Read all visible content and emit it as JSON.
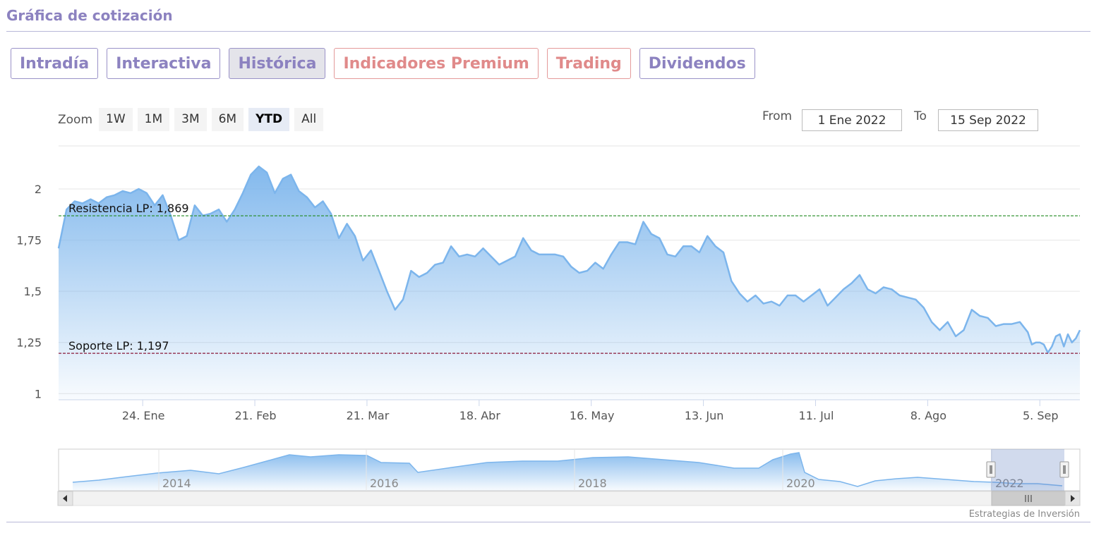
{
  "header": {
    "title": "Gráfica de cotización"
  },
  "tabs": [
    {
      "label": "Intradía",
      "state": "normal"
    },
    {
      "label": "Interactiva",
      "state": "normal"
    },
    {
      "label": "Histórica",
      "state": "active"
    },
    {
      "label": "Indicadores Premium",
      "state": "premium"
    },
    {
      "label": "Trading",
      "state": "premium"
    },
    {
      "label": "Dividendos",
      "state": "normal"
    }
  ],
  "zoom": {
    "label": "Zoom",
    "buttons": [
      "1W",
      "1M",
      "3M",
      "6M",
      "YTD",
      "All"
    ],
    "selected": "YTD"
  },
  "range": {
    "from_label": "From",
    "from_value": "1 Ene 2022",
    "to_label": "To",
    "to_value": "15 Sep 2022"
  },
  "credits": "Estrategias de Inversión",
  "chart_data": {
    "type": "area",
    "x_start": "2022-01-03",
    "x_end": "2022-09-15",
    "ylim": [
      0.97,
      2.2
    ],
    "y_ticks": [
      "1",
      "1,25",
      "1,5",
      "1,75",
      "2"
    ],
    "x_ticks": [
      {
        "date": "2022-01-24",
        "label": "24. Ene"
      },
      {
        "date": "2022-02-21",
        "label": "21. Feb"
      },
      {
        "date": "2022-03-21",
        "label": "21. Mar"
      },
      {
        "date": "2022-04-18",
        "label": "18. Abr"
      },
      {
        "date": "2022-05-16",
        "label": "16. May"
      },
      {
        "date": "2022-06-13",
        "label": "13. Jun"
      },
      {
        "date": "2022-07-11",
        "label": "11. Jul"
      },
      {
        "date": "2022-08-08",
        "label": "8. Ago"
      },
      {
        "date": "2022-09-05",
        "label": "5. Sep"
      }
    ],
    "series": [
      {
        "color": "#7cb5ec",
        "points": [
          [
            "2022-01-03",
            1.71
          ],
          [
            "2022-01-05",
            1.9
          ],
          [
            "2022-01-07",
            1.94
          ],
          [
            "2022-01-09",
            1.93
          ],
          [
            "2022-01-11",
            1.95
          ],
          [
            "2022-01-13",
            1.93
          ],
          [
            "2022-01-15",
            1.96
          ],
          [
            "2022-01-17",
            1.97
          ],
          [
            "2022-01-19",
            1.99
          ],
          [
            "2022-01-21",
            1.98
          ],
          [
            "2022-01-23",
            2.0
          ],
          [
            "2022-01-25",
            1.98
          ],
          [
            "2022-01-27",
            1.92
          ],
          [
            "2022-01-29",
            1.97
          ],
          [
            "2022-01-31",
            1.87
          ],
          [
            "2022-02-02",
            1.75
          ],
          [
            "2022-02-04",
            1.77
          ],
          [
            "2022-02-06",
            1.92
          ],
          [
            "2022-02-08",
            1.87
          ],
          [
            "2022-02-10",
            1.88
          ],
          [
            "2022-02-12",
            1.9
          ],
          [
            "2022-02-14",
            1.84
          ],
          [
            "2022-02-16",
            1.9
          ],
          [
            "2022-02-18",
            1.98
          ],
          [
            "2022-02-20",
            2.07
          ],
          [
            "2022-02-22",
            2.11
          ],
          [
            "2022-02-24",
            2.08
          ],
          [
            "2022-02-26",
            1.98
          ],
          [
            "2022-02-28",
            2.05
          ],
          [
            "2022-03-02",
            2.07
          ],
          [
            "2022-03-04",
            1.99
          ],
          [
            "2022-03-06",
            1.96
          ],
          [
            "2022-03-08",
            1.91
          ],
          [
            "2022-03-10",
            1.94
          ],
          [
            "2022-03-12",
            1.88
          ],
          [
            "2022-03-14",
            1.76
          ],
          [
            "2022-03-16",
            1.83
          ],
          [
            "2022-03-18",
            1.77
          ],
          [
            "2022-03-20",
            1.65
          ],
          [
            "2022-03-22",
            1.7
          ],
          [
            "2022-03-24",
            1.6
          ],
          [
            "2022-03-26",
            1.5
          ],
          [
            "2022-03-28",
            1.41
          ],
          [
            "2022-03-30",
            1.46
          ],
          [
            "2022-04-01",
            1.6
          ],
          [
            "2022-04-03",
            1.57
          ],
          [
            "2022-04-05",
            1.59
          ],
          [
            "2022-04-07",
            1.63
          ],
          [
            "2022-04-09",
            1.64
          ],
          [
            "2022-04-11",
            1.72
          ],
          [
            "2022-04-13",
            1.67
          ],
          [
            "2022-04-15",
            1.68
          ],
          [
            "2022-04-17",
            1.67
          ],
          [
            "2022-04-19",
            1.71
          ],
          [
            "2022-04-21",
            1.67
          ],
          [
            "2022-04-23",
            1.63
          ],
          [
            "2022-04-25",
            1.65
          ],
          [
            "2022-04-27",
            1.67
          ],
          [
            "2022-04-29",
            1.76
          ],
          [
            "2022-05-01",
            1.7
          ],
          [
            "2022-05-03",
            1.68
          ],
          [
            "2022-05-05",
            1.68
          ],
          [
            "2022-05-07",
            1.68
          ],
          [
            "2022-05-09",
            1.67
          ],
          [
            "2022-05-11",
            1.62
          ],
          [
            "2022-05-13",
            1.59
          ],
          [
            "2022-05-15",
            1.6
          ],
          [
            "2022-05-17",
            1.64
          ],
          [
            "2022-05-19",
            1.61
          ],
          [
            "2022-05-21",
            1.68
          ],
          [
            "2022-05-23",
            1.74
          ],
          [
            "2022-05-25",
            1.74
          ],
          [
            "2022-05-27",
            1.73
          ],
          [
            "2022-05-29",
            1.84
          ],
          [
            "2022-05-31",
            1.78
          ],
          [
            "2022-06-02",
            1.76
          ],
          [
            "2022-06-04",
            1.68
          ],
          [
            "2022-06-06",
            1.67
          ],
          [
            "2022-06-08",
            1.72
          ],
          [
            "2022-06-10",
            1.72
          ],
          [
            "2022-06-12",
            1.69
          ],
          [
            "2022-06-14",
            1.77
          ],
          [
            "2022-06-16",
            1.72
          ],
          [
            "2022-06-18",
            1.69
          ],
          [
            "2022-06-20",
            1.55
          ],
          [
            "2022-06-22",
            1.49
          ],
          [
            "2022-06-24",
            1.45
          ],
          [
            "2022-06-26",
            1.48
          ],
          [
            "2022-06-28",
            1.44
          ],
          [
            "2022-06-30",
            1.45
          ],
          [
            "2022-07-02",
            1.43
          ],
          [
            "2022-07-04",
            1.48
          ],
          [
            "2022-07-06",
            1.48
          ],
          [
            "2022-07-08",
            1.45
          ],
          [
            "2022-07-10",
            1.48
          ],
          [
            "2022-07-12",
            1.51
          ],
          [
            "2022-07-14",
            1.43
          ],
          [
            "2022-07-16",
            1.47
          ],
          [
            "2022-07-18",
            1.51
          ],
          [
            "2022-07-20",
            1.54
          ],
          [
            "2022-07-22",
            1.58
          ],
          [
            "2022-07-24",
            1.51
          ],
          [
            "2022-07-26",
            1.49
          ],
          [
            "2022-07-28",
            1.52
          ],
          [
            "2022-07-30",
            1.51
          ],
          [
            "2022-08-01",
            1.48
          ],
          [
            "2022-08-03",
            1.47
          ],
          [
            "2022-08-05",
            1.46
          ],
          [
            "2022-08-07",
            1.42
          ],
          [
            "2022-08-09",
            1.35
          ],
          [
            "2022-08-11",
            1.31
          ],
          [
            "2022-08-13",
            1.35
          ],
          [
            "2022-08-15",
            1.28
          ],
          [
            "2022-08-17",
            1.31
          ],
          [
            "2022-08-19",
            1.41
          ],
          [
            "2022-08-21",
            1.38
          ],
          [
            "2022-08-23",
            1.37
          ],
          [
            "2022-08-25",
            1.33
          ],
          [
            "2022-08-27",
            1.34
          ],
          [
            "2022-08-29",
            1.34
          ],
          [
            "2022-08-31",
            1.35
          ],
          [
            "2022-09-02",
            1.3
          ],
          [
            "2022-09-03",
            1.24
          ],
          [
            "2022-09-04",
            1.25
          ],
          [
            "2022-09-05",
            1.25
          ],
          [
            "2022-09-06",
            1.24
          ],
          [
            "2022-09-07",
            1.2
          ],
          [
            "2022-09-08",
            1.23
          ],
          [
            "2022-09-09",
            1.28
          ],
          [
            "2022-09-10",
            1.29
          ],
          [
            "2022-09-11",
            1.23
          ],
          [
            "2022-09-12",
            1.29
          ],
          [
            "2022-09-13",
            1.25
          ],
          [
            "2022-09-14",
            1.27
          ],
          [
            "2022-09-15",
            1.31
          ]
        ]
      }
    ],
    "plot_lines": [
      {
        "label": "Resistencia LP: 1,869",
        "value": 1.869,
        "color": "#228b22"
      },
      {
        "label": "Soporte LP: 1,197",
        "value": 1.197,
        "color": "#8b1a3a"
      }
    ],
    "navigator": {
      "x_labels": [
        "2014",
        "2016",
        "2018",
        "2020",
        "2022"
      ]
    }
  }
}
